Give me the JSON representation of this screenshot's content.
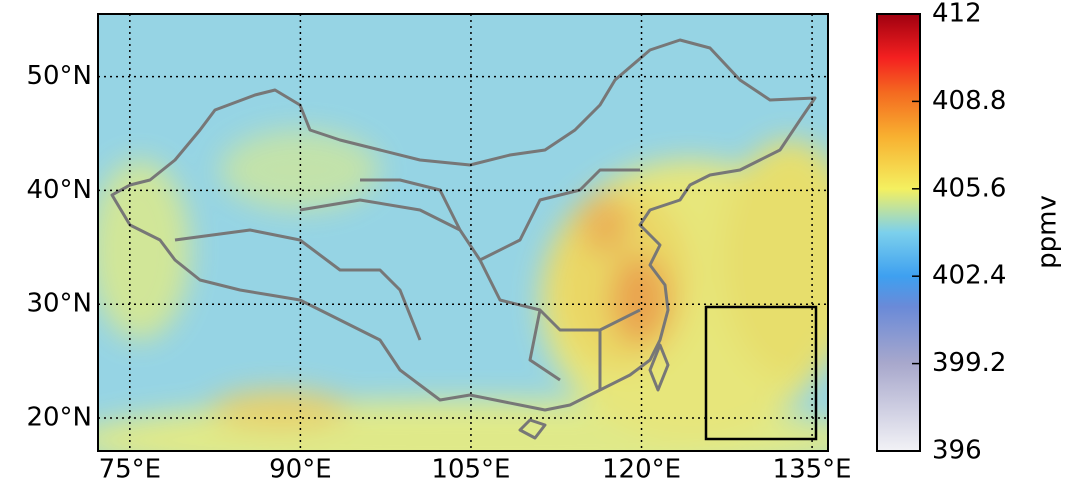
{
  "map": {
    "xlim": [
      72.2,
      136.4
    ],
    "ylim": [
      17.1,
      55.5
    ],
    "lon_ticks": [
      {
        "value": 75,
        "label": "75°E"
      },
      {
        "value": 90,
        "label": "90°E"
      },
      {
        "value": 105,
        "label": "105°E"
      },
      {
        "value": 120,
        "label": "120°E"
      },
      {
        "value": 135,
        "label": "135°E"
      }
    ],
    "lat_ticks": [
      {
        "value": 20,
        "label": "20°N"
      },
      {
        "value": 30,
        "label": "30°N"
      },
      {
        "value": 40,
        "label": "40°N"
      },
      {
        "value": 50,
        "label": "50°N"
      }
    ],
    "colorbar": {
      "label": "ppmv",
      "range": [
        396,
        412
      ],
      "ticks": [
        396,
        399.2,
        402.4,
        405.6,
        408.8,
        412
      ]
    }
  }
}
